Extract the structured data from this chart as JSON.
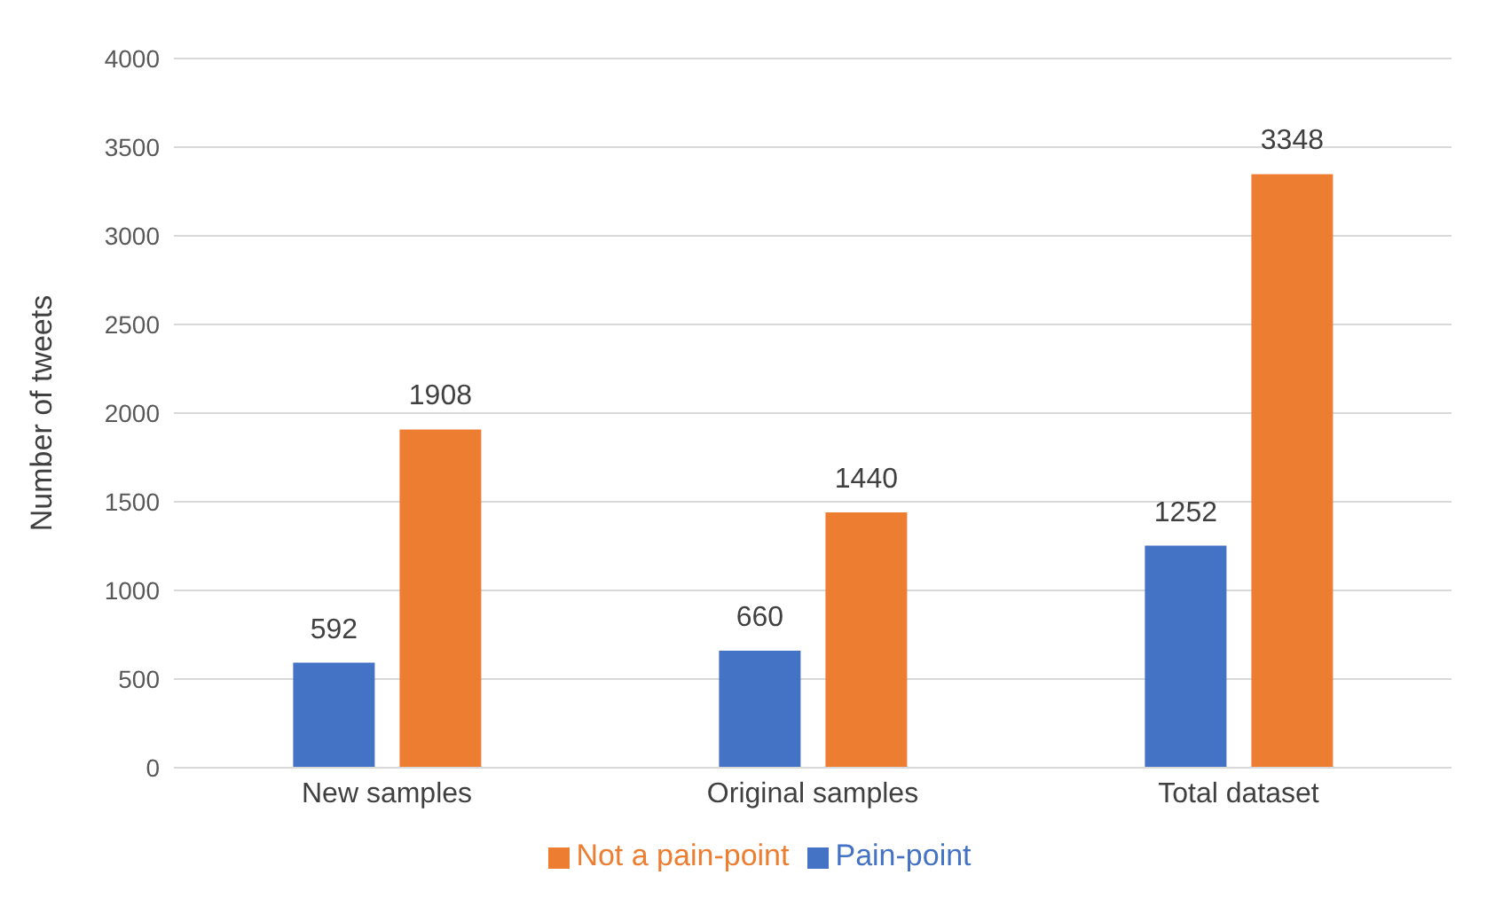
{
  "chart_data": {
    "type": "bar",
    "ylabel": "Number of tweets",
    "categories": [
      "New samples",
      "Original samples",
      "Total dataset"
    ],
    "series": [
      {
        "name": "Pain-point",
        "color": "#4472c4",
        "values": [
          592,
          660,
          1252
        ]
      },
      {
        "name": "Not a pain-point",
        "color": "#ed7d31",
        "values": [
          1908,
          1440,
          3348
        ]
      }
    ],
    "ylim": [
      0,
      4000
    ],
    "yticks": [
      0,
      500,
      1000,
      1500,
      2000,
      2500,
      3000,
      3500,
      4000
    ],
    "grid": "y",
    "legend": "bottom",
    "data_labels": true
  }
}
